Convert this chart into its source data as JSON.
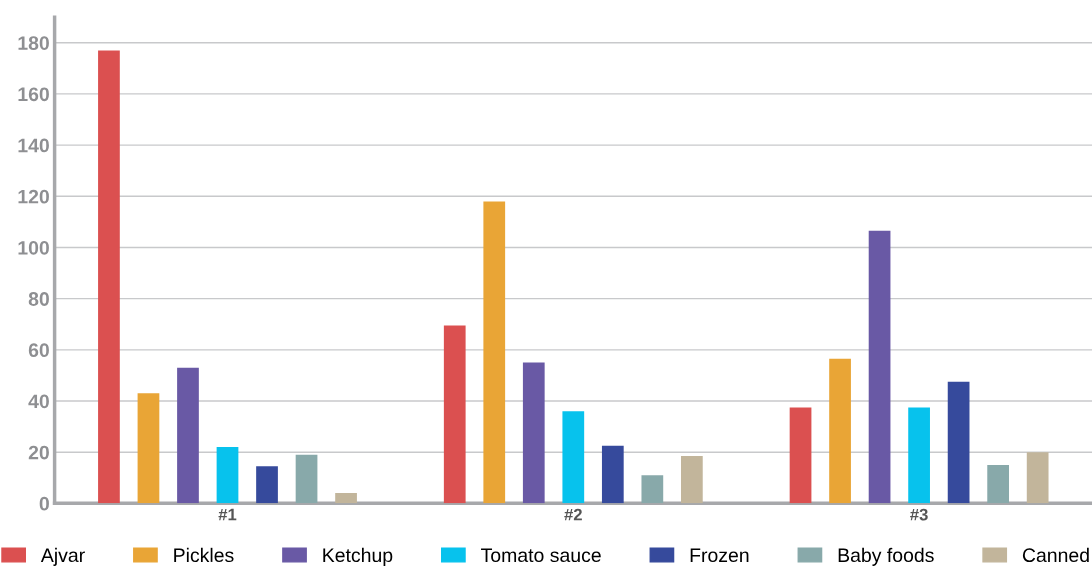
{
  "chart_data": {
    "type": "bar",
    "categories": [
      "#1",
      "#2",
      "#3"
    ],
    "series": [
      {
        "name": "Ajvar",
        "color": "#db5050",
        "values": [
          177,
          69.5,
          37.5
        ]
      },
      {
        "name": "Pickles",
        "color": "#e9a536",
        "values": [
          43,
          118,
          56.5
        ]
      },
      {
        "name": "Ketchup",
        "color": "#6959a5",
        "values": [
          53,
          55,
          106.5
        ]
      },
      {
        "name": "Tomato sauce",
        "color": "#07c2ed",
        "values": [
          22,
          36,
          37.5
        ]
      },
      {
        "name": "Frozen",
        "color": "#364a9c",
        "values": [
          14.5,
          22.5,
          47.5
        ]
      },
      {
        "name": "Baby foods",
        "color": "#88a9aa",
        "values": [
          19,
          11,
          15
        ]
      },
      {
        "name": "Canned",
        "color": "#c2b59b",
        "values": [
          4,
          18.5,
          20
        ]
      }
    ],
    "ylim": [
      0,
      190
    ],
    "yticks": [
      0,
      20,
      40,
      60,
      80,
      100,
      120,
      140,
      160,
      180
    ],
    "grid": "y",
    "legend": "bottom"
  }
}
